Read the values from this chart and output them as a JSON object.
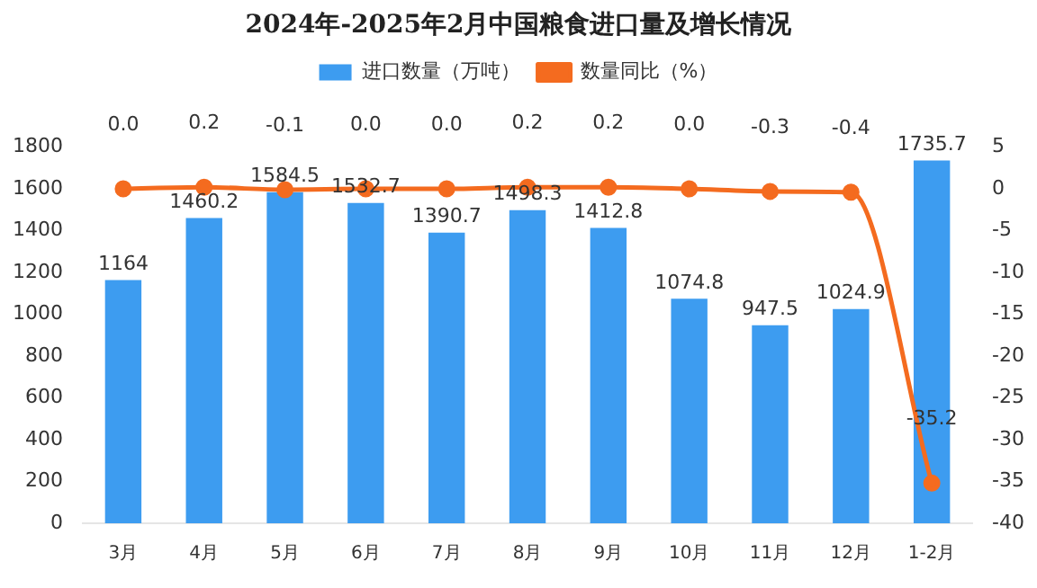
{
  "chart_data": {
    "type": "bar",
    "title": "2024年-2025年2月中国粮食进口量及增长情况",
    "categories": [
      "3月",
      "4月",
      "5月",
      "6月",
      "7月",
      "8月",
      "9月",
      "10月",
      "11月",
      "12月",
      "1-2月"
    ],
    "series": [
      {
        "name": "进口数量（万吨）",
        "color": "#3d9cf0",
        "values": [
          1164,
          1460.2,
          1584.5,
          1532.7,
          1390.7,
          1498.3,
          1412.8,
          1074.8,
          947.5,
          1024.9,
          1735.7
        ]
      },
      {
        "name": "数量同比（%）",
        "type": "line",
        "axis": "y2",
        "color": "#f46b1f",
        "values": [
          0.0,
          0.2,
          -0.1,
          0.0,
          0.0,
          0.2,
          0.2,
          0.0,
          -0.3,
          -0.4,
          -35.2
        ],
        "value_labels": [
          "0.0",
          "0.2",
          "-0.1",
          "0.0",
          "0.0",
          "0.2",
          "0.2",
          "0.0",
          "-0.3",
          "-0.4",
          "-35.2"
        ]
      }
    ],
    "ylim": [
      0,
      1800
    ],
    "yticks": [
      0,
      200,
      400,
      600,
      800,
      1000,
      1200,
      1400,
      1600,
      1800
    ],
    "y2lim": [
      -40,
      5
    ],
    "y2ticks": [
      -40,
      -35,
      -30,
      -25,
      -20,
      -15,
      -10,
      -5,
      0,
      5
    ],
    "data_labels": true,
    "legend": "top",
    "grid": false,
    "marker": "circle",
    "line_style": "solid"
  }
}
